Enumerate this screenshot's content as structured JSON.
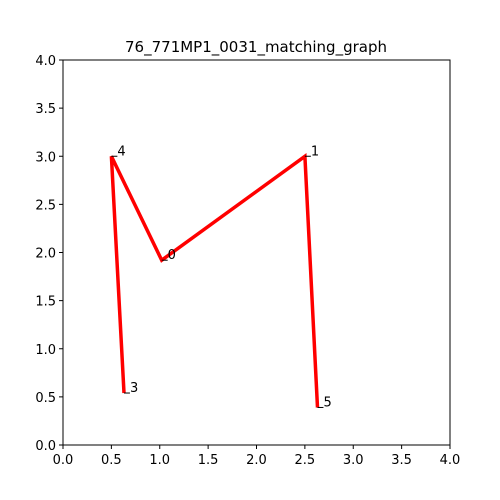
{
  "chart_data": {
    "type": "line",
    "title": "76_771MP1_0031_matching_graph",
    "xlabel": "",
    "ylabel": "",
    "xlim": [
      0.0,
      4.0
    ],
    "ylim": [
      0.0,
      4.0
    ],
    "xticks": [
      "0.0",
      "0.5",
      "1.0",
      "1.5",
      "2.0",
      "2.5",
      "3.0",
      "3.5",
      "4.0"
    ],
    "yticks": [
      "0.0",
      "0.5",
      "1.0",
      "1.5",
      "2.0",
      "2.5",
      "3.0",
      "3.5",
      "4.0"
    ],
    "grid": false,
    "line_color": "#ff0000",
    "nodes": [
      {
        "id": "0",
        "x": 1.02,
        "y": 1.92
      },
      {
        "id": "1",
        "x": 2.5,
        "y": 3.0
      },
      {
        "id": "3",
        "x": 0.63,
        "y": 0.54
      },
      {
        "id": "4",
        "x": 0.5,
        "y": 3.0
      },
      {
        "id": "5",
        "x": 2.63,
        "y": 0.39
      }
    ],
    "path": [
      "3",
      "4",
      "0",
      "1",
      "5"
    ]
  }
}
